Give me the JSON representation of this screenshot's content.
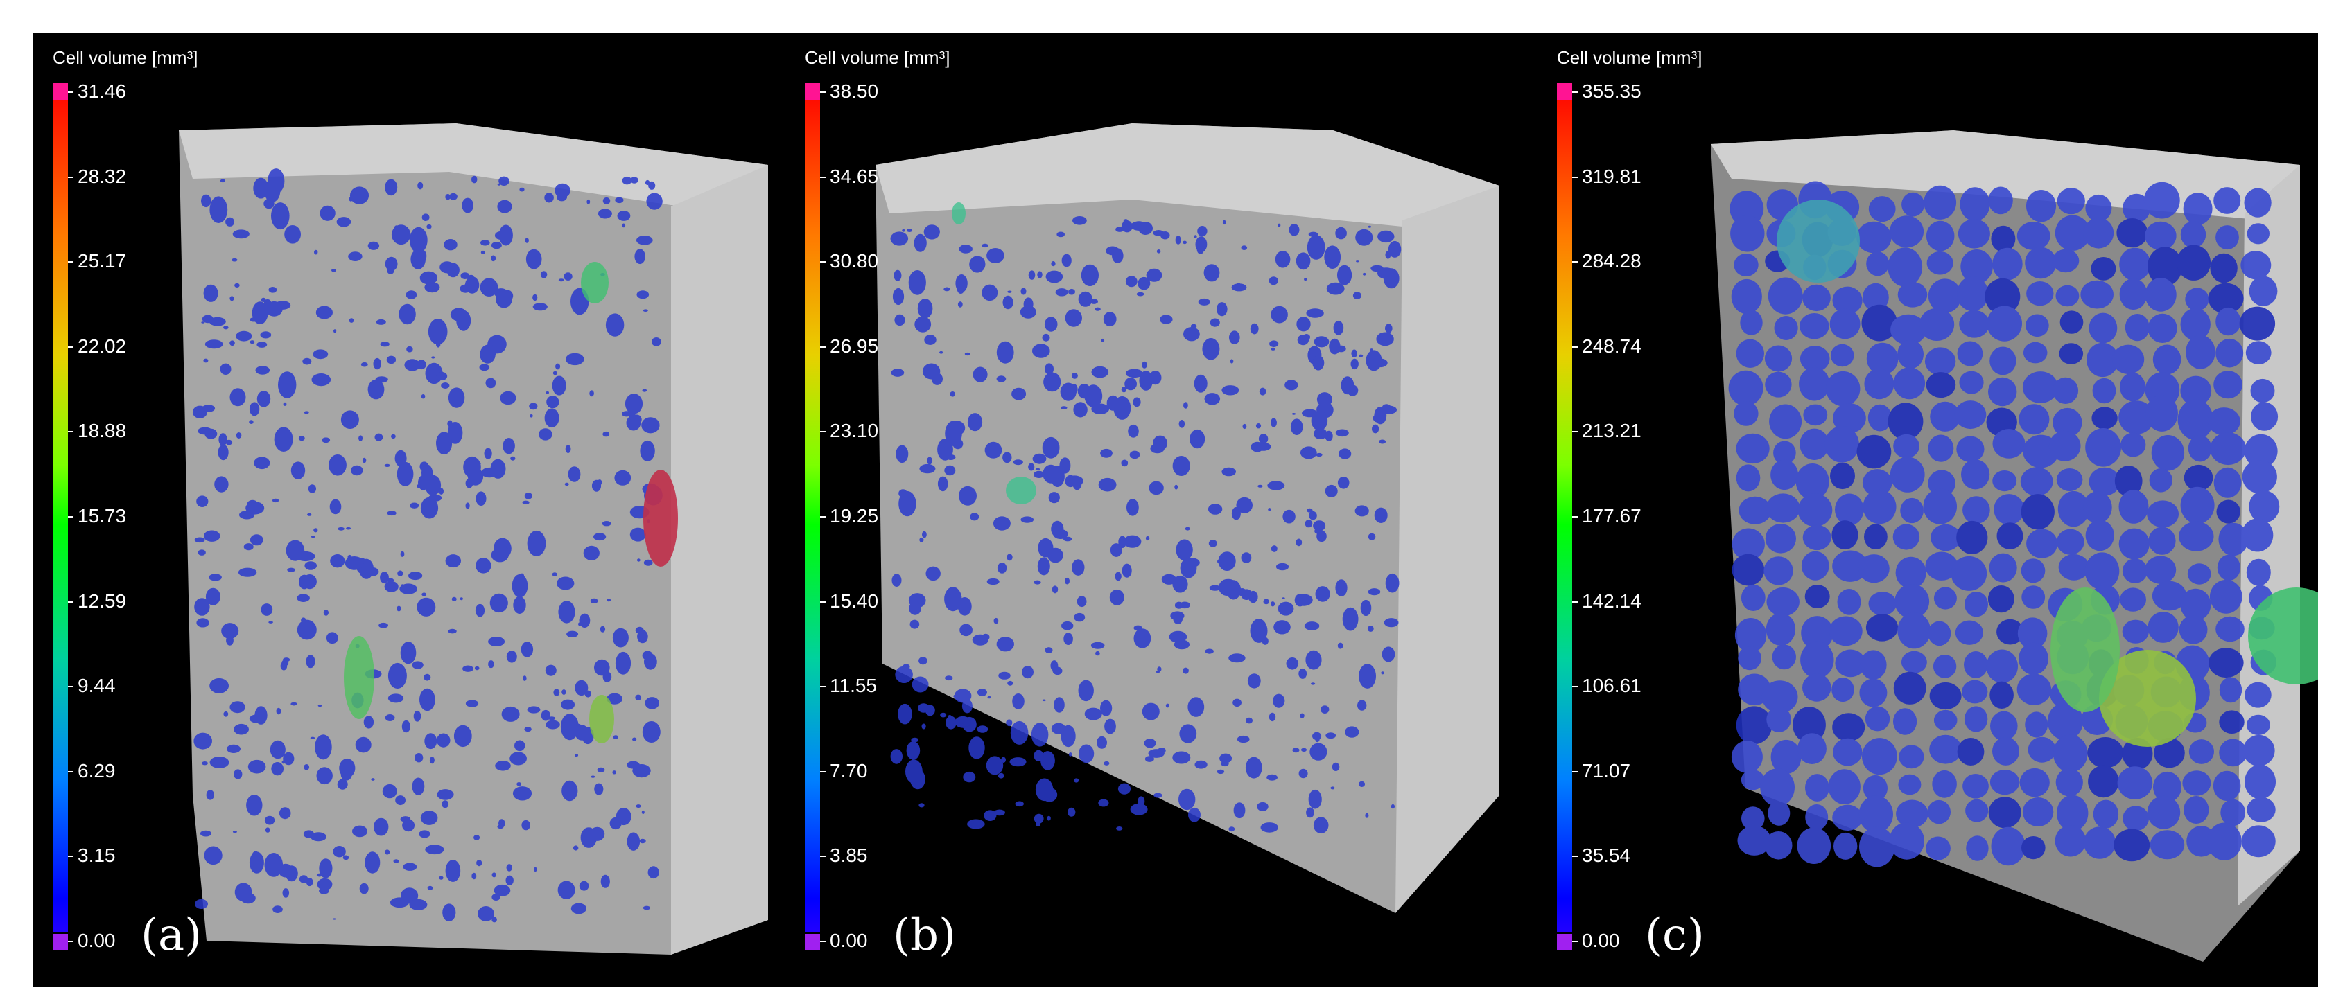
{
  "panels": [
    {
      "id": "a",
      "colorbar_title": "Cell volume [mm³]",
      "ticks": [
        "31.46",
        "28.32",
        "25.17",
        "22.02",
        "18.88",
        "15.73",
        "12.59",
        "9.44",
        "6.29",
        "3.15",
        "0.00"
      ],
      "label": "(a)"
    },
    {
      "id": "b",
      "colorbar_title": "Cell volume [mm³]",
      "ticks": [
        "38.50",
        "34.65",
        "30.80",
        "26.95",
        "23.10",
        "19.25",
        "15.40",
        "11.55",
        "7.70",
        "3.85",
        "0.00"
      ],
      "label": "(b)"
    },
    {
      "id": "c",
      "colorbar_title": "Cell volume [mm³]",
      "ticks": [
        "355.35",
        "319.81",
        "284.28",
        "248.74",
        "213.21",
        "177.67",
        "142.14",
        "106.61",
        "71.07",
        "35.54",
        "0.00"
      ],
      "label": "(c)"
    }
  ],
  "colors": {
    "background": "#000000",
    "sample_gray": "#a6a6a6",
    "pore_blue": "#2a3acc",
    "colorbar_top": "#ff1493",
    "colorbar_bottom": "#a020f0"
  }
}
